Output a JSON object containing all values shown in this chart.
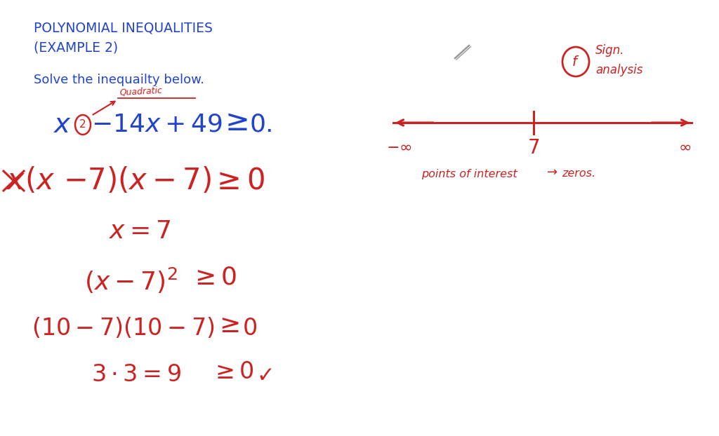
{
  "bg_color": "#ffffff",
  "title_color": "#2244cc",
  "red_color": "#cc2222",
  "blue_color": "#2244cc",
  "gray_color": "#999999",
  "title_line1": "POLYNOMIAL INEQUALITIES",
  "title_line2": "(EXAMPLE 2)",
  "subtitle": "Solve the inequailty below."
}
